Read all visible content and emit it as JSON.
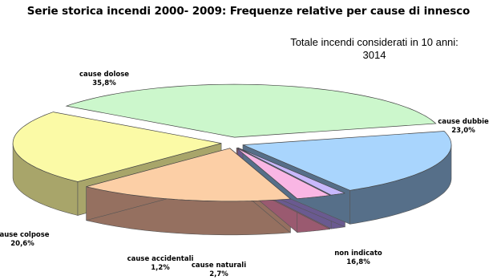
{
  "chart_data": {
    "type": "pie",
    "style": "3d-exploded",
    "title": "Serie storica incendi 2000- 2009: Frequenze relative per cause di innesco",
    "annotation": {
      "line1": "Totale incendi considerati in 10 anni:",
      "line2": "3014"
    },
    "slices": [
      {
        "name": "cause dolose",
        "value": 35.8,
        "label": "35,8%",
        "top": "#ccf7cc",
        "side": "#7a9c7a"
      },
      {
        "name": "cause dubbie",
        "value": 23.0,
        "label": "23,0%",
        "top": "#fbfaa6",
        "side": "#a8a56a"
      },
      {
        "name": "non indicato",
        "value": 16.8,
        "label": "16,8%",
        "top": "#fccfa6",
        "side": "#957060"
      },
      {
        "name": "cause naturali",
        "value": 2.7,
        "label": "2,7%",
        "top": "#f9b6e4",
        "side": "#9a5a70"
      },
      {
        "name": "cause accidentali",
        "value": 1.2,
        "label": "1,2%",
        "top": "#c8b8fc",
        "side": "#6a5a90"
      },
      {
        "name": "cause colpose",
        "value": 20.6,
        "label": "20,6%",
        "top": "#a9d5fd",
        "side": "#566f89"
      }
    ],
    "unit": "%",
    "legend": "none (labels beside slices)"
  }
}
